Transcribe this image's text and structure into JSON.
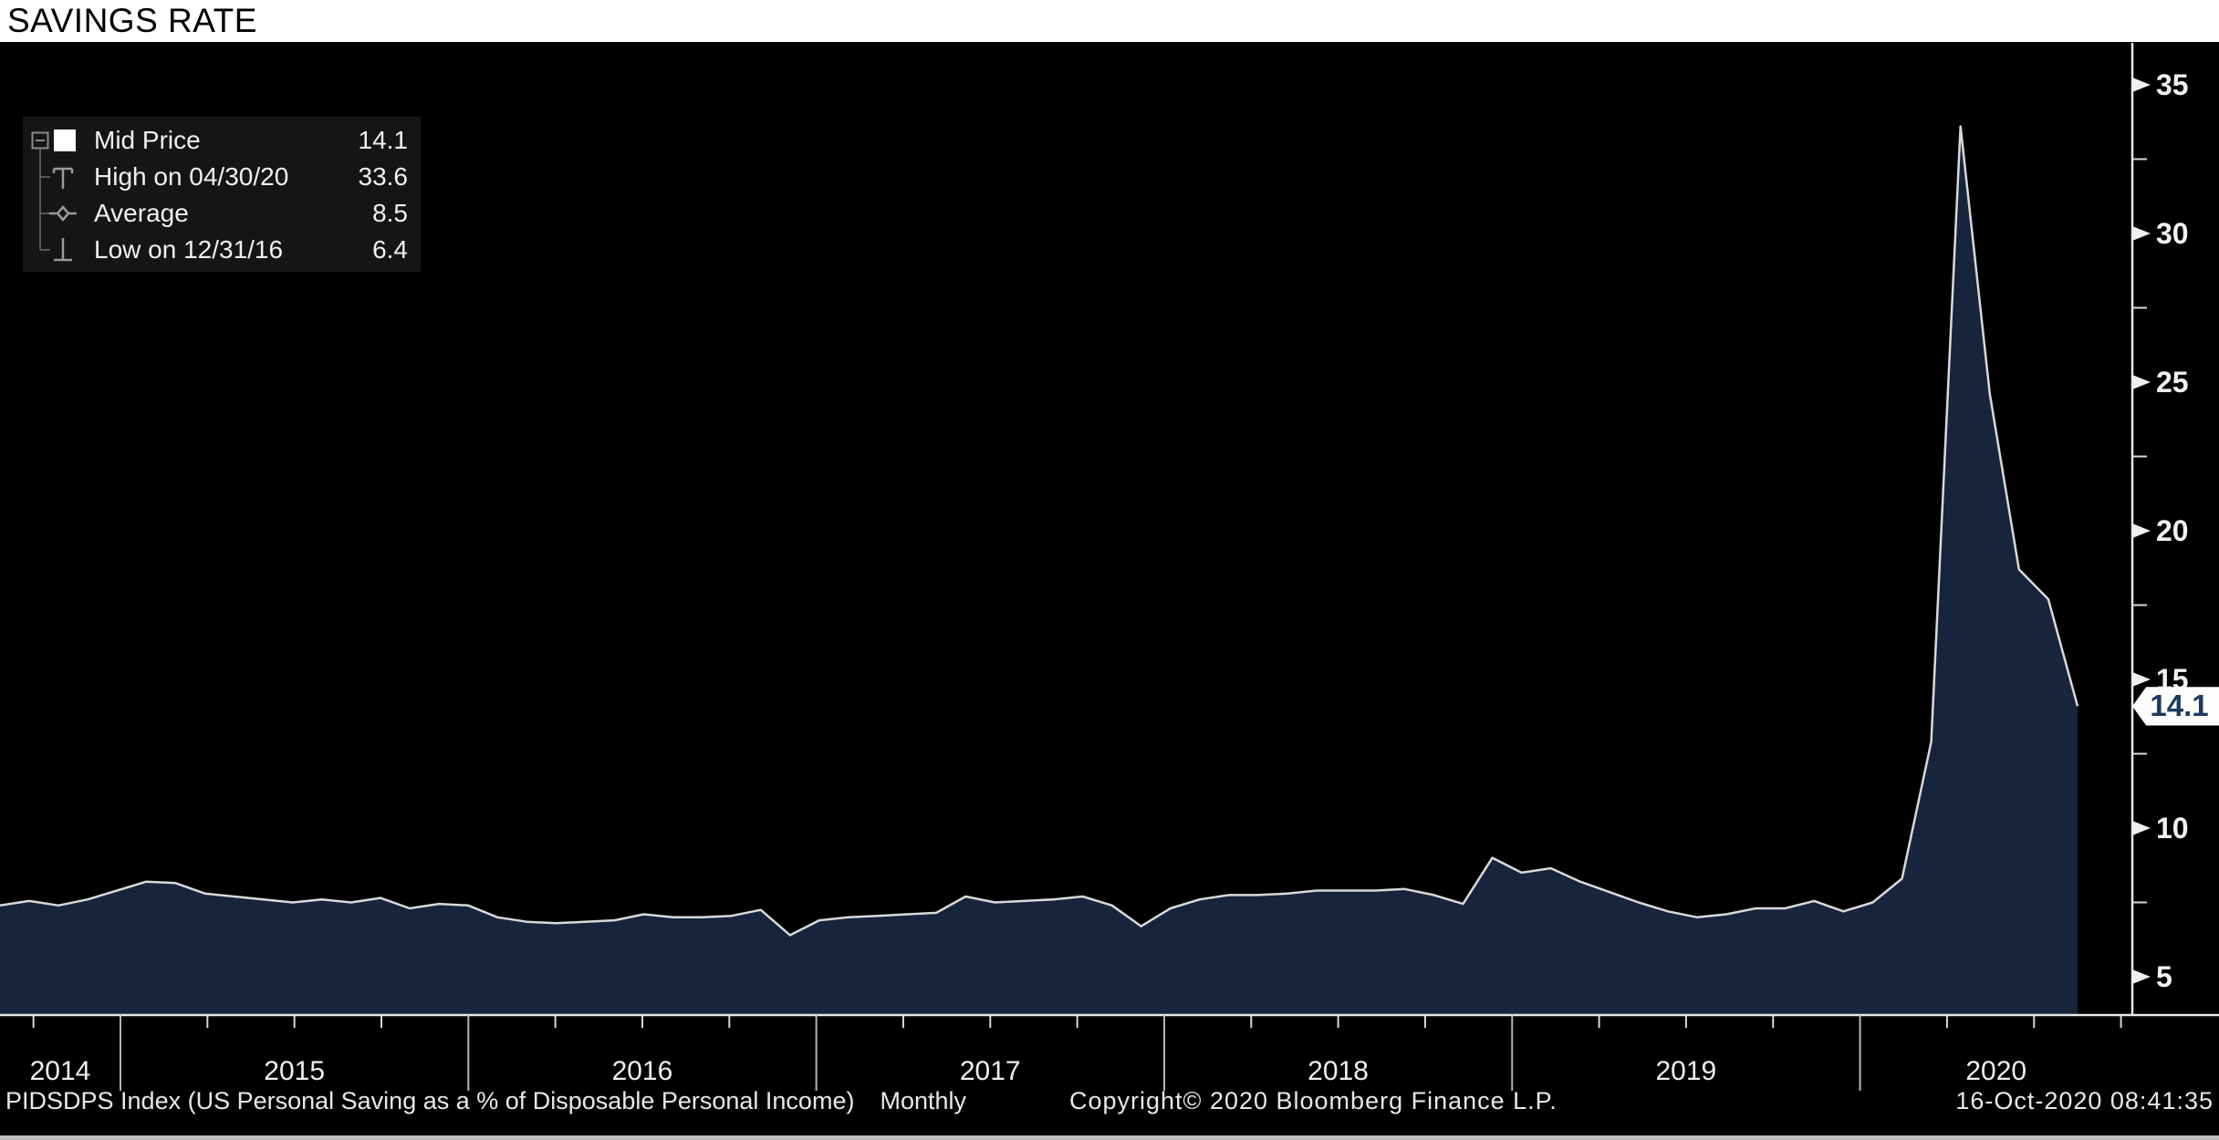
{
  "title": "SAVINGS RATE",
  "legend": {
    "rows": [
      {
        "label": "Mid Price",
        "value": "14.1",
        "marker": "mid-price-swatch"
      },
      {
        "label": "High on 04/30/20",
        "value": "33.6",
        "marker": "high-marker"
      },
      {
        "label": "Average",
        "value": "8.5",
        "marker": "average-marker"
      },
      {
        "label": "Low on 12/31/16",
        "value": "6.4",
        "marker": "low-marker"
      }
    ]
  },
  "chart_data": {
    "type": "area",
    "title": "SAVINGS RATE",
    "series_name": "PIDSDPS Index (US Personal Saving as a % of Disposable Personal Income)",
    "frequency": "Monthly",
    "x_monthly_start": "2014-09",
    "x_monthly_end": "2020-08",
    "values": [
      7.4,
      7.55,
      7.4,
      7.6,
      7.9,
      8.2,
      8.15,
      7.8,
      7.7,
      7.6,
      7.5,
      7.6,
      7.5,
      7.65,
      7.3,
      7.45,
      7.4,
      7.0,
      6.85,
      6.8,
      6.85,
      6.9,
      7.1,
      7.0,
      7.0,
      7.05,
      7.25,
      6.4,
      6.9,
      7.0,
      7.05,
      7.1,
      7.15,
      7.7,
      7.5,
      7.55,
      7.6,
      7.7,
      7.4,
      6.7,
      7.3,
      7.6,
      7.75,
      7.75,
      7.8,
      7.9,
      7.9,
      7.9,
      7.95,
      7.75,
      7.45,
      9.0,
      8.5,
      8.65,
      8.2,
      7.85,
      7.5,
      7.2,
      7.0,
      7.1,
      7.3,
      7.3,
      7.55,
      7.2,
      7.5,
      8.3,
      12.9,
      33.6,
      24.6,
      18.7,
      17.7,
      14.1
    ],
    "x_year_labels": [
      "2014",
      "2015",
      "2016",
      "2017",
      "2018",
      "2019",
      "2020"
    ],
    "y_ticks": [
      35,
      30,
      25,
      20,
      15,
      10,
      5
    ],
    "y_minor_step": 2.5,
    "ylim_visible": [
      3.7,
      36.4
    ],
    "last_value_label": "14.1",
    "high": {
      "date": "04/30/20",
      "value": 33.6
    },
    "low": {
      "date": "12/31/16",
      "value": 6.4
    },
    "average": 8.5,
    "mid_price": 14.1,
    "legend_position": "top-left",
    "grid": "off",
    "line_color": "#d9d9d9",
    "fill_color": "#16243c",
    "background_color": "#000000",
    "axis_color": "#e8e8e8",
    "label_color": "#f2f2f2"
  },
  "status_bar": {
    "left": "PIDSDPS Index (US Personal Saving as a % of Disposable Personal Income)",
    "frequency": "Monthly",
    "copyright": "Copyright© 2020 Bloomberg Finance L.P.",
    "datetime": "16-Oct-2020 08:41:35"
  }
}
